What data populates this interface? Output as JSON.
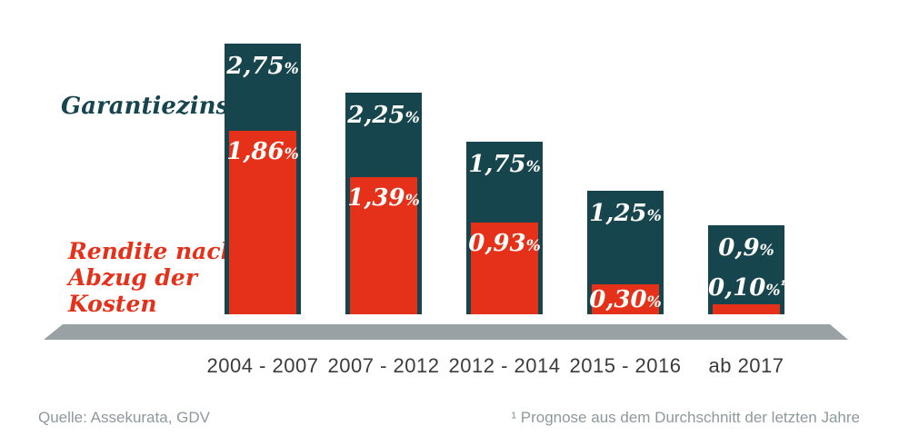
{
  "chart_data": {
    "type": "bar",
    "categories": [
      "2004 - 2007",
      "2007 - 2012",
      "2012 - 2014",
      "2015 - 2016",
      "ab 2017"
    ],
    "series": [
      {
        "name": "Garantiezins",
        "color": "#17454e",
        "values": [
          2.75,
          2.25,
          1.75,
          1.25,
          0.9
        ],
        "labels": [
          "2,75",
          "2,25",
          "1,75",
          "1,25",
          "0,9"
        ]
      },
      {
        "name": "Rendite nach Abzug der Kosten",
        "color": "#e5311a",
        "values": [
          1.86,
          1.39,
          0.93,
          0.3,
          0.1
        ],
        "labels": [
          "1,86",
          "1,39",
          "0,93",
          "0,30",
          "0,10"
        ],
        "footnote_marks": [
          "",
          "",
          "",
          "",
          "¹"
        ]
      }
    ],
    "unit": "%",
    "ylim": [
      0,
      3
    ],
    "grid": false,
    "legend_position": "left",
    "value_text_color": "#fdfdfa",
    "baseline_color": "#99a1a5"
  },
  "legend": {
    "garantiezins": "Garantiezins",
    "rendite_lines": [
      "Rendite nach",
      "Abzug der",
      "Kosten"
    ]
  },
  "footer": {
    "source": "Quelle: Assekurata, GDV",
    "footnote": "¹ Prognose aus dem Durchschnitt der letzten Jahre"
  }
}
